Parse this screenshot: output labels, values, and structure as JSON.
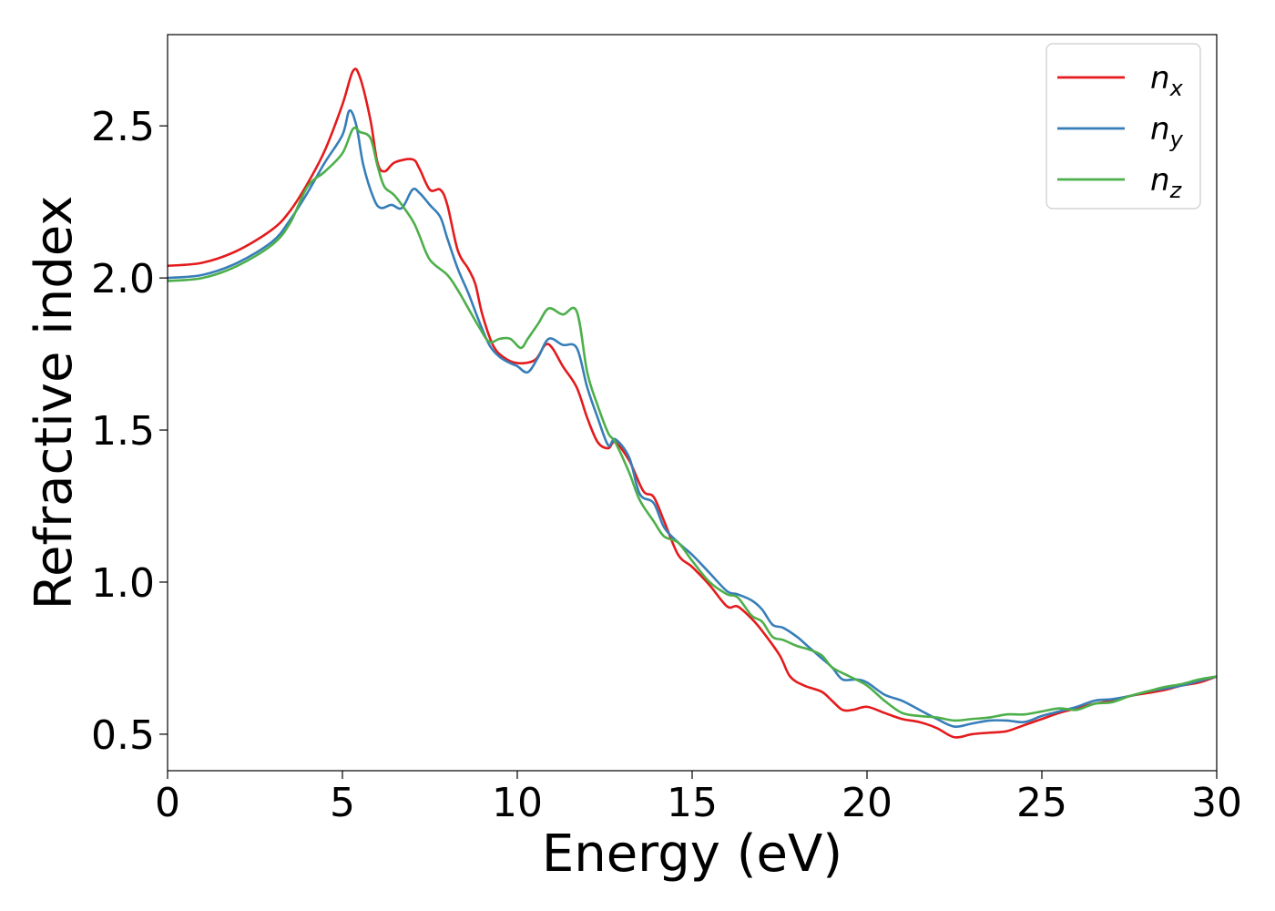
{
  "chart_data": {
    "type": "line",
    "title": "",
    "xlabel": "Energy (eV)",
    "ylabel": "Refractive index",
    "xlim": [
      0,
      30
    ],
    "ylim": [
      0.38,
      2.8
    ],
    "x_ticks": [
      0,
      5,
      10,
      15,
      20,
      25,
      30
    ],
    "x_tick_labels": [
      "0",
      "5",
      "10",
      "15",
      "20",
      "25",
      "30"
    ],
    "y_ticks": [
      0.5,
      1.0,
      1.5,
      2.0,
      2.5
    ],
    "y_tick_labels": [
      "0.5",
      "1.0",
      "1.5",
      "2.0",
      "2.5"
    ],
    "grid": false,
    "legend_position": "top-right",
    "series": [
      {
        "name": "n_x",
        "legend_base": "n",
        "legend_sub": "x",
        "color": "#e41a1c",
        "points": [
          [
            0,
            2.04
          ],
          [
            1,
            2.05
          ],
          [
            2,
            2.09
          ],
          [
            3,
            2.16
          ],
          [
            3.5,
            2.22
          ],
          [
            4,
            2.31
          ],
          [
            4.5,
            2.42
          ],
          [
            5,
            2.57
          ],
          [
            5.3,
            2.68
          ],
          [
            5.5,
            2.66
          ],
          [
            5.8,
            2.52
          ],
          [
            6.0,
            2.38
          ],
          [
            6.2,
            2.35
          ],
          [
            6.5,
            2.38
          ],
          [
            7.0,
            2.39
          ],
          [
            7.2,
            2.36
          ],
          [
            7.5,
            2.29
          ],
          [
            7.8,
            2.29
          ],
          [
            8.0,
            2.24
          ],
          [
            8.3,
            2.09
          ],
          [
            8.6,
            2.03
          ],
          [
            8.8,
            1.98
          ],
          [
            9.0,
            1.88
          ],
          [
            9.3,
            1.78
          ],
          [
            9.6,
            1.74
          ],
          [
            10.0,
            1.72
          ],
          [
            10.5,
            1.73
          ],
          [
            10.8,
            1.78
          ],
          [
            11.0,
            1.77
          ],
          [
            11.3,
            1.71
          ],
          [
            11.7,
            1.64
          ],
          [
            12.0,
            1.54
          ],
          [
            12.3,
            1.46
          ],
          [
            12.6,
            1.44
          ],
          [
            12.8,
            1.46
          ],
          [
            13.2,
            1.4
          ],
          [
            13.6,
            1.3
          ],
          [
            13.9,
            1.28
          ],
          [
            14.2,
            1.2
          ],
          [
            14.6,
            1.09
          ],
          [
            15.0,
            1.05
          ],
          [
            15.5,
            0.99
          ],
          [
            16.0,
            0.92
          ],
          [
            16.3,
            0.92
          ],
          [
            16.7,
            0.88
          ],
          [
            17.0,
            0.84
          ],
          [
            17.5,
            0.76
          ],
          [
            17.8,
            0.69
          ],
          [
            18.2,
            0.66
          ],
          [
            18.7,
            0.64
          ],
          [
            19.0,
            0.61
          ],
          [
            19.3,
            0.58
          ],
          [
            19.6,
            0.58
          ],
          [
            20.0,
            0.59
          ],
          [
            20.5,
            0.57
          ],
          [
            21.0,
            0.55
          ],
          [
            21.5,
            0.54
          ],
          [
            22.0,
            0.52
          ],
          [
            22.5,
            0.49
          ],
          [
            23.0,
            0.5
          ],
          [
            23.5,
            0.505
          ],
          [
            24.0,
            0.51
          ],
          [
            24.5,
            0.53
          ],
          [
            25.0,
            0.55
          ],
          [
            25.5,
            0.57
          ],
          [
            26.0,
            0.585
          ],
          [
            26.5,
            0.6
          ],
          [
            27.0,
            0.61
          ],
          [
            27.5,
            0.625
          ],
          [
            28.0,
            0.635
          ],
          [
            28.5,
            0.645
          ],
          [
            29.0,
            0.66
          ],
          [
            29.5,
            0.67
          ],
          [
            30.0,
            0.69
          ]
        ]
      },
      {
        "name": "n_y",
        "legend_base": "n",
        "legend_sub": "y",
        "color": "#377eb8",
        "points": [
          [
            0,
            2.0
          ],
          [
            1,
            2.01
          ],
          [
            2,
            2.05
          ],
          [
            3,
            2.12
          ],
          [
            3.5,
            2.19
          ],
          [
            4,
            2.28
          ],
          [
            4.5,
            2.38
          ],
          [
            5,
            2.47
          ],
          [
            5.2,
            2.55
          ],
          [
            5.4,
            2.5
          ],
          [
            5.6,
            2.37
          ],
          [
            5.9,
            2.26
          ],
          [
            6.1,
            2.23
          ],
          [
            6.4,
            2.24
          ],
          [
            6.7,
            2.23
          ],
          [
            7.0,
            2.29
          ],
          [
            7.2,
            2.28
          ],
          [
            7.5,
            2.24
          ],
          [
            7.8,
            2.2
          ],
          [
            8.0,
            2.13
          ],
          [
            8.3,
            2.03
          ],
          [
            8.6,
            1.95
          ],
          [
            8.9,
            1.86
          ],
          [
            9.2,
            1.78
          ],
          [
            9.5,
            1.74
          ],
          [
            9.8,
            1.72
          ],
          [
            10.0,
            1.71
          ],
          [
            10.3,
            1.69
          ],
          [
            10.6,
            1.74
          ],
          [
            10.9,
            1.8
          ],
          [
            11.3,
            1.78
          ],
          [
            11.7,
            1.77
          ],
          [
            12.0,
            1.64
          ],
          [
            12.3,
            1.54
          ],
          [
            12.6,
            1.45
          ],
          [
            12.8,
            1.47
          ],
          [
            13.2,
            1.41
          ],
          [
            13.5,
            1.29
          ],
          [
            13.9,
            1.26
          ],
          [
            14.2,
            1.18
          ],
          [
            14.6,
            1.13
          ],
          [
            15.0,
            1.09
          ],
          [
            15.5,
            1.03
          ],
          [
            16.0,
            0.97
          ],
          [
            16.3,
            0.96
          ],
          [
            16.7,
            0.94
          ],
          [
            17.0,
            0.91
          ],
          [
            17.3,
            0.86
          ],
          [
            17.6,
            0.85
          ],
          [
            18.0,
            0.82
          ],
          [
            18.3,
            0.79
          ],
          [
            18.7,
            0.75
          ],
          [
            19.0,
            0.72
          ],
          [
            19.3,
            0.68
          ],
          [
            19.7,
            0.68
          ],
          [
            20.0,
            0.67
          ],
          [
            20.5,
            0.63
          ],
          [
            21.0,
            0.61
          ],
          [
            21.5,
            0.58
          ],
          [
            22.0,
            0.55
          ],
          [
            22.5,
            0.525
          ],
          [
            23.0,
            0.535
          ],
          [
            23.5,
            0.545
          ],
          [
            24.0,
            0.545
          ],
          [
            24.5,
            0.54
          ],
          [
            25.0,
            0.56
          ],
          [
            25.5,
            0.575
          ],
          [
            26.0,
            0.59
          ],
          [
            26.5,
            0.61
          ],
          [
            27.0,
            0.615
          ],
          [
            27.5,
            0.625
          ],
          [
            28.0,
            0.64
          ],
          [
            28.5,
            0.65
          ],
          [
            29.0,
            0.66
          ],
          [
            29.5,
            0.675
          ],
          [
            30.0,
            0.69
          ]
        ]
      },
      {
        "name": "n_z",
        "legend_base": "n",
        "legend_sub": "z",
        "color": "#4daf4a",
        "points": [
          [
            0,
            1.99
          ],
          [
            1,
            2.0
          ],
          [
            2,
            2.04
          ],
          [
            3,
            2.11
          ],
          [
            3.5,
            2.18
          ],
          [
            4,
            2.3
          ],
          [
            4.5,
            2.35
          ],
          [
            5,
            2.41
          ],
          [
            5.3,
            2.49
          ],
          [
            5.5,
            2.48
          ],
          [
            5.8,
            2.46
          ],
          [
            6.0,
            2.37
          ],
          [
            6.2,
            2.3
          ],
          [
            6.5,
            2.27
          ],
          [
            7.0,
            2.19
          ],
          [
            7.2,
            2.14
          ],
          [
            7.5,
            2.06
          ],
          [
            8.0,
            2.01
          ],
          [
            8.3,
            1.96
          ],
          [
            8.6,
            1.9
          ],
          [
            8.9,
            1.84
          ],
          [
            9.2,
            1.79
          ],
          [
            9.5,
            1.8
          ],
          [
            9.8,
            1.8
          ],
          [
            10.1,
            1.77
          ],
          [
            10.3,
            1.8
          ],
          [
            10.6,
            1.85
          ],
          [
            10.9,
            1.9
          ],
          [
            11.3,
            1.88
          ],
          [
            11.7,
            1.89
          ],
          [
            12.0,
            1.69
          ],
          [
            12.3,
            1.58
          ],
          [
            12.6,
            1.49
          ],
          [
            12.8,
            1.46
          ],
          [
            13.2,
            1.36
          ],
          [
            13.5,
            1.27
          ],
          [
            13.9,
            1.2
          ],
          [
            14.2,
            1.15
          ],
          [
            14.6,
            1.13
          ],
          [
            15.0,
            1.07
          ],
          [
            15.5,
            1.0
          ],
          [
            16.0,
            0.96
          ],
          [
            16.3,
            0.95
          ],
          [
            16.7,
            0.89
          ],
          [
            17.0,
            0.87
          ],
          [
            17.3,
            0.82
          ],
          [
            17.6,
            0.81
          ],
          [
            18.0,
            0.79
          ],
          [
            18.3,
            0.78
          ],
          [
            18.7,
            0.76
          ],
          [
            19.0,
            0.72
          ],
          [
            19.5,
            0.69
          ],
          [
            20.0,
            0.66
          ],
          [
            20.5,
            0.61
          ],
          [
            21.0,
            0.57
          ],
          [
            21.5,
            0.56
          ],
          [
            22.0,
            0.555
          ],
          [
            22.5,
            0.545
          ],
          [
            23.0,
            0.55
          ],
          [
            23.5,
            0.555
          ],
          [
            24.0,
            0.565
          ],
          [
            24.5,
            0.565
          ],
          [
            25.0,
            0.575
          ],
          [
            25.5,
            0.585
          ],
          [
            26.0,
            0.58
          ],
          [
            26.5,
            0.6
          ],
          [
            27.0,
            0.605
          ],
          [
            27.5,
            0.625
          ],
          [
            28.0,
            0.64
          ],
          [
            28.5,
            0.655
          ],
          [
            29.0,
            0.665
          ],
          [
            29.5,
            0.68
          ],
          [
            30.0,
            0.69
          ]
        ]
      }
    ]
  }
}
